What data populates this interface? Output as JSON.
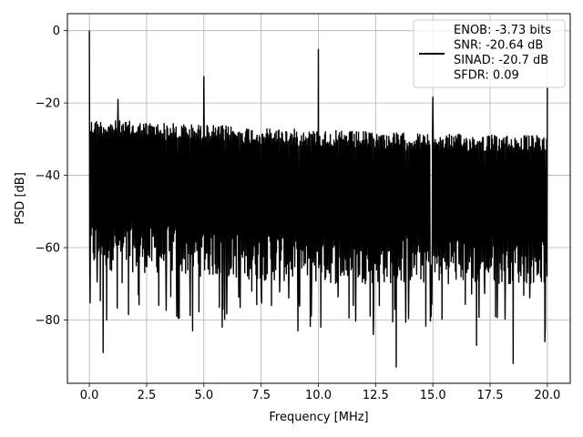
{
  "chart_data": {
    "type": "line",
    "xlabel": "Frequency [MHz]",
    "ylabel": "PSD [dB]",
    "xlim": [
      -0.96,
      21.0
    ],
    "ylim": [
      -97.5,
      4.7
    ],
    "xticks": [
      0.0,
      2.5,
      5.0,
      7.5,
      10.0,
      12.5,
      15.0,
      17.5,
      20.0
    ],
    "xtick_labels": [
      "0.0",
      "2.5",
      "5.0",
      "7.5",
      "10.0",
      "12.5",
      "15.0",
      "17.5",
      "20.0"
    ],
    "yticks": [
      0,
      -20,
      -40,
      -60,
      -80
    ],
    "ytick_labels": [
      "0",
      "−20",
      "−40",
      "−60",
      "−80"
    ],
    "grid": true,
    "legend_position": "top-right",
    "series": [
      {
        "name": "ENOB: -3.73 bits\nSNR: -20.64 dB\nSINAD: -20.7 dB\nSFDR: 0.09",
        "color": "#000000",
        "noise_floor": {
          "x_range": [
            0.0,
            20.0
          ],
          "upper_envelope": [
            [
              0.0,
              -24.5
            ],
            [
              5.0,
              -26.0
            ],
            [
              10.0,
              -27.5
            ],
            [
              15.0,
              -28.5
            ],
            [
              20.0,
              -29.0
            ]
          ],
          "lower_envelope": [
            [
              0.0,
              -64
            ],
            [
              5.0,
              -66
            ],
            [
              10.0,
              -68
            ],
            [
              15.0,
              -68
            ],
            [
              20.0,
              -68
            ]
          ]
        },
        "peaks": [
          {
            "x": 0.0,
            "y": 0.0
          },
          {
            "x": 1.25,
            "y": -19.0
          },
          {
            "x": 5.0,
            "y": -12.7
          },
          {
            "x": 10.0,
            "y": -5.2
          },
          {
            "x": 15.0,
            "y": -18.4
          },
          {
            "x": 20.0,
            "y": -15.5
          }
        ],
        "dips": [
          {
            "x": 0.6,
            "y": -89
          },
          {
            "x": 0.75,
            "y": -80
          },
          {
            "x": 4.5,
            "y": -83
          },
          {
            "x": 5.8,
            "y": -82
          },
          {
            "x": 9.1,
            "y": -83
          },
          {
            "x": 10.1,
            "y": -82
          },
          {
            "x": 12.4,
            "y": -84
          },
          {
            "x": 13.4,
            "y": -93
          },
          {
            "x": 16.9,
            "y": -87
          },
          {
            "x": 18.5,
            "y": -92
          },
          {
            "x": 19.9,
            "y": -86
          }
        ]
      }
    ]
  }
}
